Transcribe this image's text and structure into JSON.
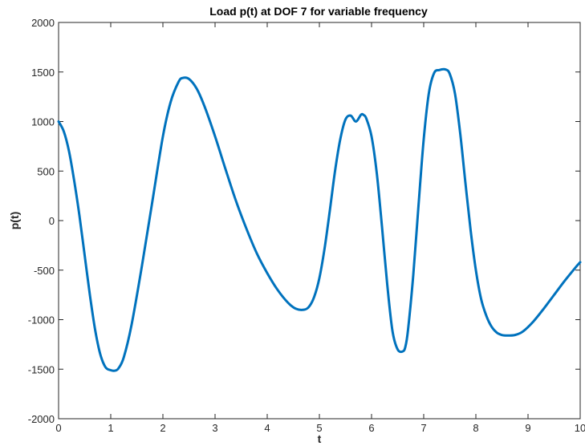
{
  "chart_data": {
    "type": "line",
    "title": "Load p(t) at DOF 7 for variable frequency",
    "xlabel": "t",
    "ylabel": "p(t)",
    "xlim": [
      0,
      10
    ],
    "ylim": [
      -2000,
      2000
    ],
    "xticks": [
      0,
      1,
      2,
      3,
      4,
      5,
      6,
      7,
      8,
      9,
      10
    ],
    "yticks": [
      -2000,
      -1500,
      -1000,
      -500,
      0,
      500,
      1000,
      1500,
      2000
    ],
    "grid": false,
    "legend": "none",
    "line_color": "#0072BD",
    "series": [
      {
        "x": [
          0,
          0.1,
          0.2,
          0.3,
          0.4,
          0.5,
          0.6,
          0.7,
          0.8,
          0.9,
          1.0,
          1.08,
          1.15,
          1.25,
          1.4,
          1.6,
          1.8,
          2.0,
          2.15,
          2.3,
          2.38,
          2.5,
          2.65,
          2.8,
          3.0,
          3.2,
          3.4,
          3.6,
          3.8,
          4.0,
          4.2,
          4.4,
          4.55,
          4.7,
          4.8,
          4.9,
          5.0,
          5.1,
          5.2,
          5.3,
          5.4,
          5.5,
          5.6,
          5.7,
          5.8,
          5.85,
          5.9,
          6.0,
          6.1,
          6.2,
          6.3,
          6.4,
          6.5,
          6.6,
          6.65,
          6.7,
          6.8,
          6.9,
          7.0,
          7.1,
          7.2,
          7.3,
          7.42,
          7.5,
          7.6,
          7.7,
          7.8,
          7.9,
          8.0,
          8.1,
          8.2,
          8.3,
          8.4,
          8.5,
          8.6,
          8.75,
          8.9,
          9.1,
          9.3,
          9.5,
          9.7,
          9.9,
          10.0
        ],
        "y": [
          1000,
          900,
          700,
          400,
          50,
          -350,
          -750,
          -1100,
          -1350,
          -1480,
          -1510,
          -1515,
          -1490,
          -1380,
          -1050,
          -450,
          200,
          850,
          1200,
          1400,
          1440,
          1430,
          1330,
          1150,
          850,
          520,
          200,
          -80,
          -330,
          -530,
          -700,
          -830,
          -890,
          -900,
          -870,
          -770,
          -580,
          -280,
          100,
          500,
          820,
          1020,
          1060,
          1000,
          1070,
          1065,
          1030,
          850,
          480,
          -60,
          -640,
          -1110,
          -1300,
          -1320,
          -1270,
          -1100,
          -550,
          150,
          820,
          1290,
          1490,
          1520,
          1525,
          1480,
          1280,
          880,
          380,
          -100,
          -500,
          -790,
          -960,
          -1070,
          -1130,
          -1155,
          -1160,
          -1155,
          -1120,
          -1020,
          -890,
          -750,
          -610,
          -480,
          -420
        ]
      }
    ]
  }
}
